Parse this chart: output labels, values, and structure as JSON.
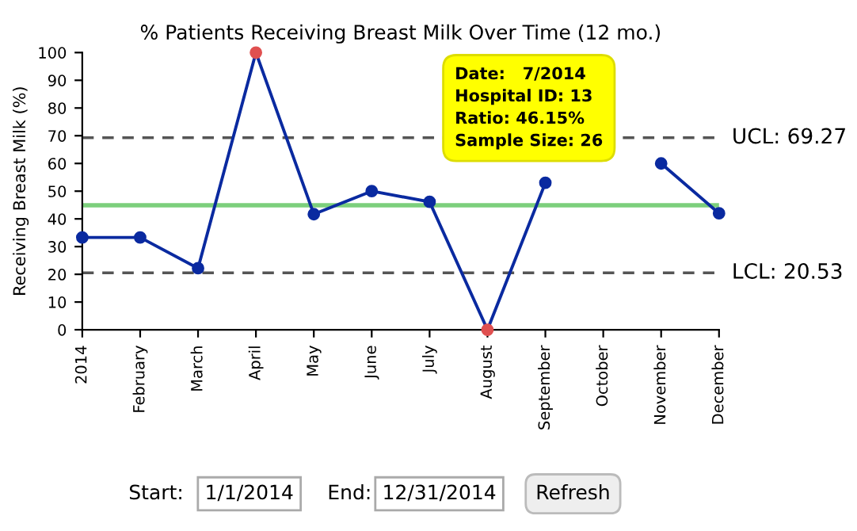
{
  "chart_data": {
    "type": "line",
    "title": "% Patients Receiving Breast Milk Over Time (12 mo.)",
    "ylabel": "Receiving Breast Milk (%)",
    "categories": [
      "2014",
      "February",
      "March",
      "April",
      "May",
      "June",
      "July",
      "August",
      "September",
      "October",
      "November",
      "December"
    ],
    "series": [
      {
        "color": "#0a2aa0",
        "values": [
          33.3,
          33.3,
          22.2,
          100,
          41.7,
          50,
          46.15,
          0,
          53,
          null,
          60,
          42
        ],
        "colors": [
          "#0a2aa0",
          "#0a2aa0",
          "#0a2aa0",
          "#e05050",
          "#0a2aa0",
          "#0a2aa0",
          "#0a2aa0",
          "#e05050",
          "#0a2aa0",
          "#0a2aa0",
          "#0a2aa0",
          "#0a2aa0"
        ]
      }
    ],
    "ylim": [
      0,
      100
    ],
    "yticks": [
      0,
      10,
      20,
      30,
      40,
      50,
      60,
      70,
      80,
      90,
      100
    ],
    "marker": "circle",
    "line_style": "solid",
    "grid": false,
    "legend": false,
    "ref_lines": [
      {
        "axis": "y",
        "value": 69.27,
        "label": "UCL: 69.27",
        "color": "#555555",
        "line_style": "dashed"
      },
      {
        "axis": "y",
        "value": 20.53,
        "label": "LCL: 20.53",
        "color": "#555555",
        "line_style": "dashed"
      },
      {
        "axis": "y",
        "value": 44.9,
        "color": "#7ccf7c",
        "line_style": "solid"
      }
    ],
    "annotations": [
      "Date:   7/2014\nHospital ID: 13\nRatio: 46.15%\nSample Size: 26",
      "Start:",
      "1/1/2014",
      "End:",
      "12/31/2014",
      "Refresh"
    ]
  }
}
